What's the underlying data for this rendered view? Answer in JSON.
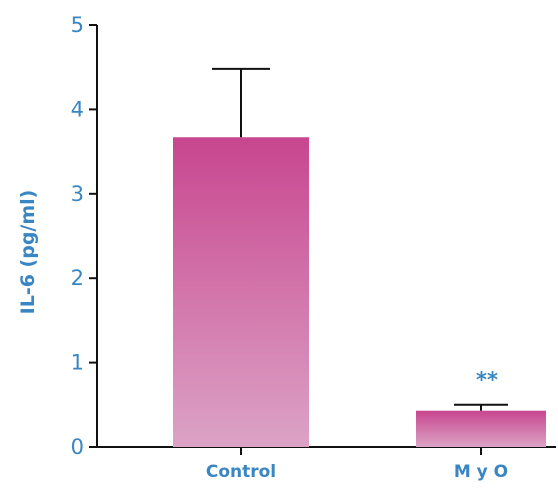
{
  "chart_data": {
    "type": "bar",
    "categories": [
      "Control",
      "M y O"
    ],
    "values": [
      3.67,
      0.43
    ],
    "errors": [
      0.81,
      0.07
    ],
    "annotations": [
      "",
      "**"
    ],
    "title": "",
    "xlabel": "",
    "ylabel": "IL-6 (pg/ml)",
    "ylim": [
      0,
      5
    ],
    "yticks": [
      "0",
      "1",
      "2",
      "3",
      "4",
      "5"
    ],
    "grid": false,
    "colors": {
      "bar_top": "#c8468f",
      "bar_bottom": "#dca3c6",
      "text": "#3a86c2",
      "axis": "#111111"
    }
  }
}
